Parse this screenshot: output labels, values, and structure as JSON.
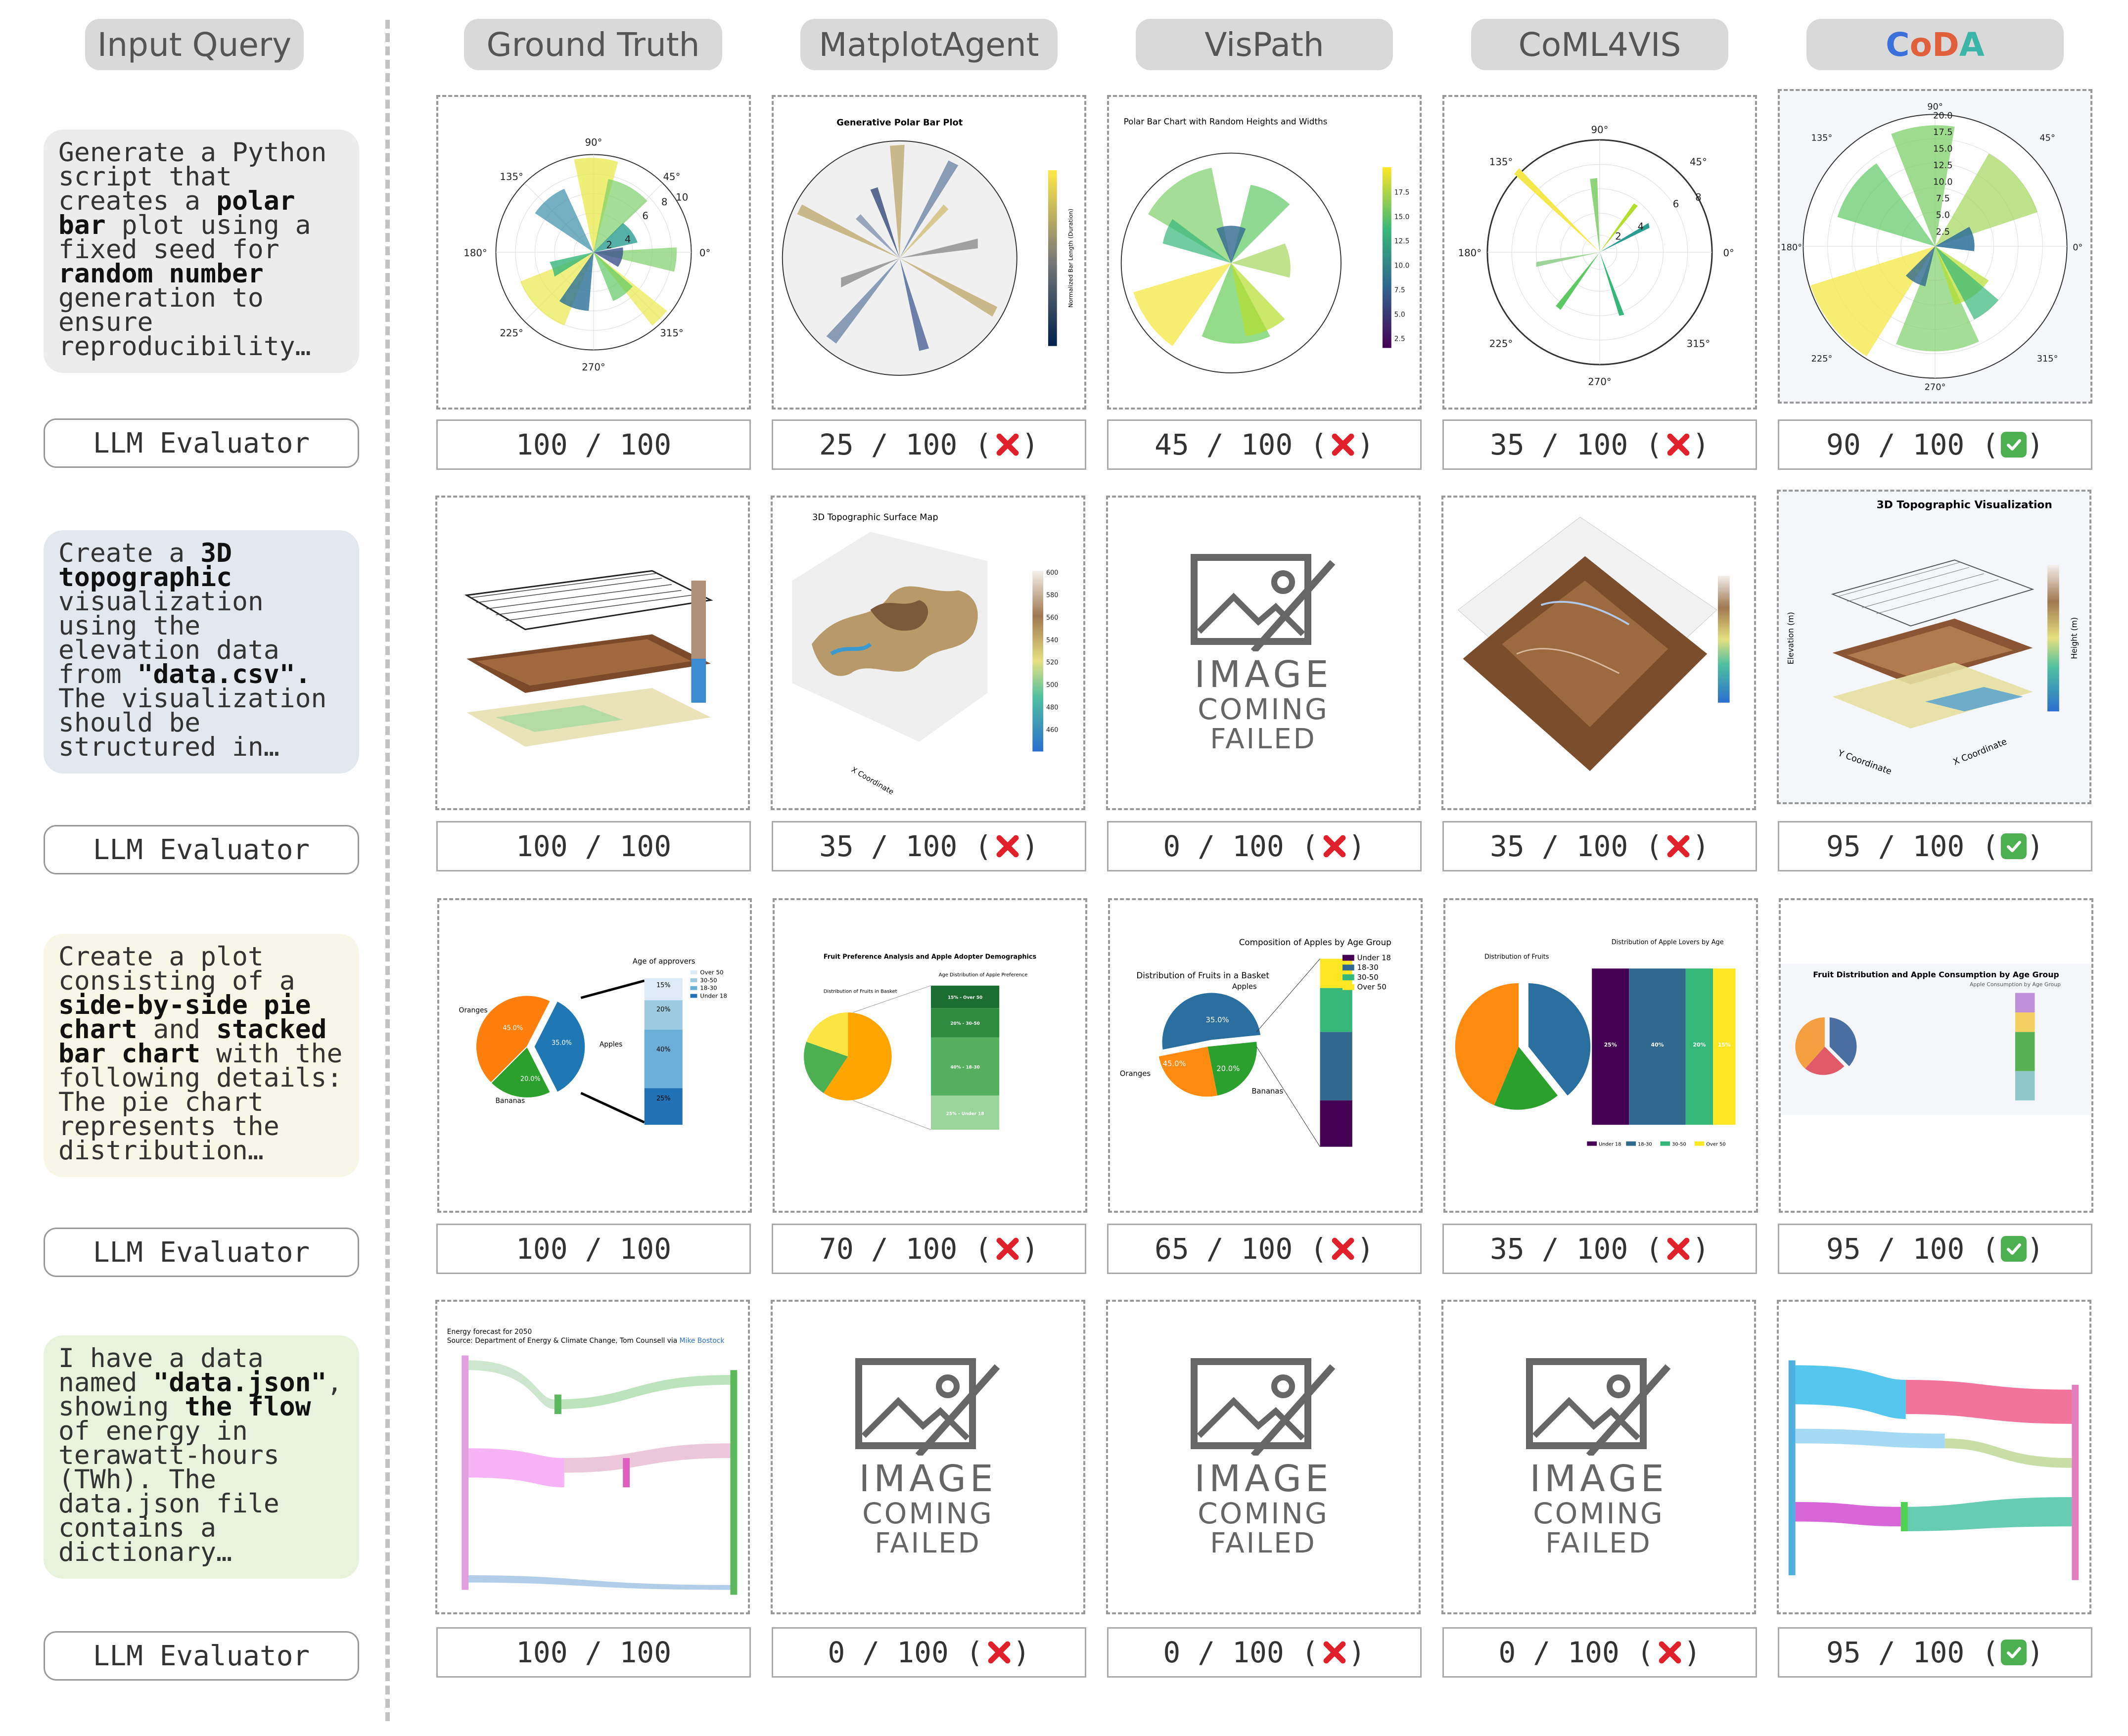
{
  "headers": {
    "query": "Input Query",
    "cols": [
      "Ground Truth",
      "MatplotAgent",
      "VisPath",
      "CoML4VIS"
    ],
    "coda": [
      "C",
      "o",
      "D",
      "A"
    ]
  },
  "colors": {
    "coda": [
      "#3b6fd9",
      "#e0603b",
      "#e0603b",
      "#3bb5a8"
    ],
    "good": "#4caf50",
    "bad": "#e0202a"
  },
  "evaluator_label": "LLM Evaluator",
  "rows": [
    {
      "query_parts": [
        {
          "t": "Generate a Python script that creates a ",
          "b": false
        },
        {
          "t": "polar bar",
          "b": true
        },
        {
          "t": " plot using a fixed seed for ",
          "b": false
        },
        {
          "t": "random number",
          "b": true
        },
        {
          "t": " generation to ensure reproducibility…",
          "b": false
        }
      ],
      "scores": [
        "100 / 100",
        "25 / 100 (",
        "45 / 100 (",
        "35 / 100 (",
        "90 / 100 ("
      ],
      "marks": [
        "none",
        "bad",
        "bad",
        "bad",
        "good"
      ]
    },
    {
      "query_parts": [
        {
          "t": "Create a ",
          "b": false
        },
        {
          "t": "3D topographic",
          "b": true
        },
        {
          "t": " visualization using the elevation data from ",
          "b": false
        },
        {
          "t": "\"data.csv\".",
          "b": true
        },
        {
          "t": " The visualization should be structured in…",
          "b": false
        }
      ],
      "scores": [
        "100 / 100",
        "35 / 100 (",
        "0 / 100 (",
        "35 / 100 (",
        "95 / 100 ("
      ],
      "marks": [
        "none",
        "bad",
        "bad",
        "bad",
        "good"
      ]
    },
    {
      "query_parts": [
        {
          "t": "Create a plot consisting of a ",
          "b": false
        },
        {
          "t": "side-by-side pie chart",
          "b": true
        },
        {
          "t": " and ",
          "b": false
        },
        {
          "t": "stacked bar chart",
          "b": true
        },
        {
          "t": " with the following details: The pie chart represents the distribution…",
          "b": false
        }
      ],
      "scores": [
        "100 / 100",
        "70 / 100 (",
        "65 / 100 (",
        "35 / 100 (",
        "95 / 100 ("
      ],
      "marks": [
        "none",
        "bad",
        "bad",
        "bad",
        "good"
      ]
    },
    {
      "query_parts": [
        {
          "t": "I have a data named ",
          "b": false
        },
        {
          "t": "\"data.json\"",
          "b": true
        },
        {
          "t": ", showing ",
          "b": false
        },
        {
          "t": "the flow",
          "b": true
        },
        {
          "t": " of energy in terawatt-hours (TWh). The data.json file contains a dictionary…",
          "b": false
        }
      ],
      "scores": [
        "100 / 100",
        "0 / 100 (",
        "0 / 100 (",
        "0 / 100 (",
        "95 / 100 ("
      ],
      "marks": [
        "none",
        "bad",
        "bad",
        "bad",
        "good"
      ]
    }
  ],
  "failed_text": [
    "IMAGE",
    "COMING",
    "FAILED"
  ],
  "thumbs": {
    "polar_gt": {
      "ticks": [
        "90°",
        "45°",
        "0°",
        "315°",
        "270°",
        "225°",
        "180°",
        "135°"
      ],
      "radial": [
        "2",
        "4",
        "6",
        "8",
        "10"
      ]
    },
    "polar_mpa": {
      "title": "Generative Polar Bar Plot",
      "cbar": "Normalized Bar Length (Duration)"
    },
    "polar_vis": {
      "title": "Polar Bar Chart with Random Heights and Widths",
      "cbar": [
        "17.5",
        "15.0",
        "12.5",
        "10.0",
        "7.5",
        "5.0",
        "2.5"
      ]
    },
    "polar_coml": {
      "ticks": [
        "90°",
        "45°",
        "0°",
        "315°",
        "270°",
        "225°",
        "180°",
        "135°"
      ],
      "radial": [
        "2",
        "4",
        "6",
        "8"
      ]
    },
    "polar_coda": {
      "ticks": [
        "90°",
        "45°",
        "0°",
        "315°",
        "270°",
        "225°",
        "180°",
        "135°"
      ],
      "radial": [
        "20.0",
        "17.5",
        "15.0",
        "12.5",
        "10.0",
        "7.5",
        "5.0",
        "2.5"
      ]
    },
    "topo_mpa": {
      "title": "3D Topographic Surface Map",
      "xlabel": "X Coordinate",
      "cbar": [
        "600",
        "580",
        "560",
        "540",
        "520",
        "500",
        "480",
        "460"
      ]
    },
    "topo_coda": {
      "title": "3D Topographic Visualization",
      "ylabel": "Y Coordinate",
      "xlabel": "X Coordinate",
      "zlabel": "Elevation (m)",
      "cbar_label": "Height (m)"
    },
    "pie_gt": {
      "legend_title": "Age of approvers",
      "legend": [
        "Over 50",
        "30-50",
        "18-30",
        "Under 18"
      ],
      "slices": [
        {
          "label": "Oranges",
          "pct": "45.0%",
          "v": 45
        },
        {
          "label": "Apples",
          "pct": "35.0%",
          "v": 35
        },
        {
          "label": "Bananas",
          "pct": "20.0%",
          "v": 20
        }
      ],
      "stack": [
        {
          "pct": "15%",
          "v": 15
        },
        {
          "pct": "20%",
          "v": 20
        },
        {
          "pct": "40%",
          "v": 40
        },
        {
          "pct": "25%",
          "v": 25
        }
      ]
    },
    "pie_mpa": {
      "title": "Fruit Preference Analysis and Apple Adopter Demographics",
      "sub1": "Distribution of Fruits in Basket",
      "sub2": "Age Distribution of Apple Preference",
      "stack": [
        "15% - Over 50",
        "20% - 30-50",
        "40% - 18-30",
        "25% - Under 18"
      ]
    },
    "pie_vis": {
      "title": "Composition of Apples by Age Group",
      "sub": "Distribution of Fruits in a Basket",
      "legend": [
        "Under 18",
        "18-30",
        "30-50",
        "Over 50"
      ],
      "labels": [
        "Apples",
        "Oranges",
        "Bananas"
      ],
      "pcts": [
        "35.0%",
        "45.0%",
        "20.0%"
      ]
    },
    "pie_coml": {
      "sub1": "Distribution of Fruits",
      "sub2": "Distribution of Apple Lovers by Age",
      "bars": [
        "25%",
        "40%",
        "20%",
        "15%"
      ],
      "legend": [
        "Under 18",
        "18-30",
        "30-50",
        "Over 50"
      ]
    },
    "pie_coda": {
      "title": "Fruit Distribution and Apple Consumption by Age Group",
      "sub": "Apple Consumption by Age Group"
    },
    "sankey_gt": {
      "title": "Energy forecast for 2050",
      "source": "Source: Department of Energy & Climate Change, Tom Counsell via ",
      "source_link": "Mike Bostock"
    }
  }
}
